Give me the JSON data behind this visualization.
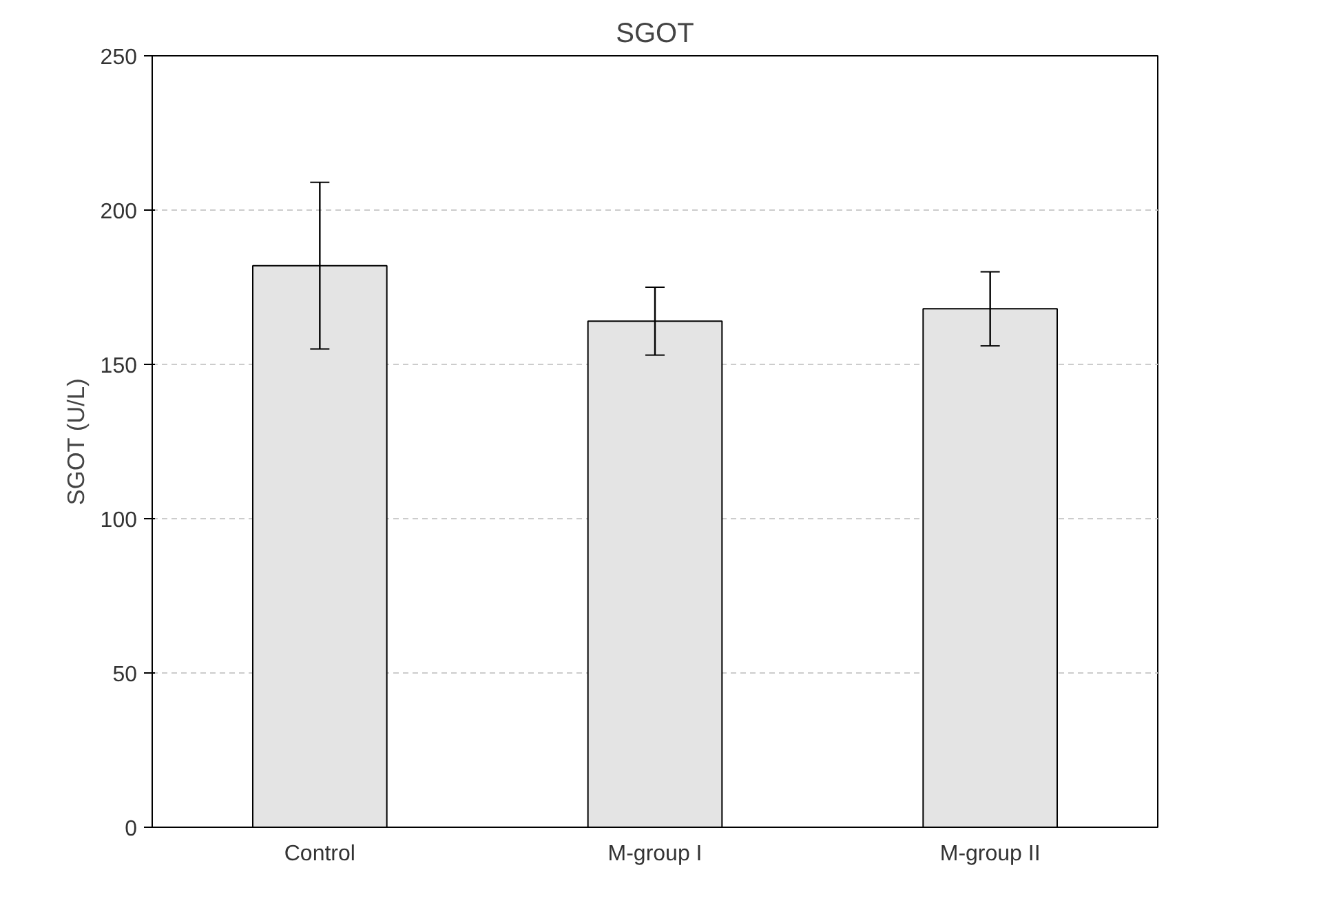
{
  "chart_data": {
    "type": "bar",
    "title": "SGOT",
    "ylabel": "SGOT (U/L)",
    "categories": [
      "Control",
      "M-group I",
      "M-group II"
    ],
    "values": [
      182,
      164,
      168
    ],
    "errors": [
      27,
      11,
      12
    ],
    "color": "#e4e4e4",
    "ylim": [
      0,
      250
    ],
    "yticks": [
      0,
      50,
      100,
      150,
      200,
      250
    ],
    "grid": "y"
  }
}
